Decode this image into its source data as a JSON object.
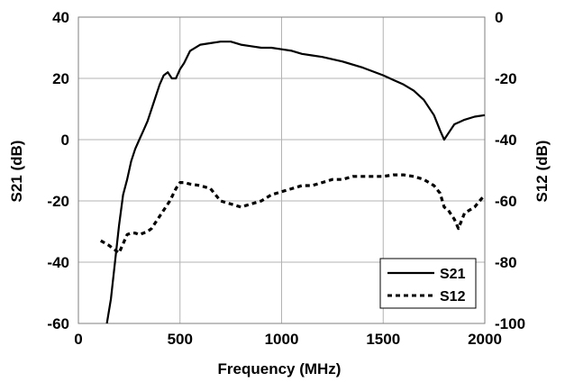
{
  "chart_data": {
    "type": "line",
    "xlabel": "Frequency (MHz)",
    "ylabel": "S21 (dB)",
    "y2label": "S12 (dB)",
    "xlim": [
      0,
      2000
    ],
    "ylim": [
      -60,
      40
    ],
    "y2lim": [
      -100,
      0
    ],
    "xticks": [
      0,
      500,
      1000,
      1500,
      2000
    ],
    "yticks": [
      -60,
      -40,
      -20,
      0,
      20,
      40
    ],
    "y2ticks": [
      -100,
      -80,
      -60,
      -40,
      -20,
      0
    ],
    "grid": true,
    "legend_position": "bottom-right",
    "series": [
      {
        "name": "S21",
        "axis": "left",
        "style": "solid",
        "x": [
          140,
          160,
          180,
          200,
          220,
          240,
          260,
          280,
          300,
          320,
          340,
          360,
          380,
          400,
          420,
          440,
          460,
          480,
          500,
          520,
          550,
          600,
          650,
          700,
          750,
          800,
          850,
          900,
          950,
          1000,
          1050,
          1100,
          1150,
          1200,
          1300,
          1400,
          1500,
          1550,
          1600,
          1650,
          1700,
          1750,
          1780,
          1800,
          1820,
          1850,
          1900,
          1950,
          2000
        ],
        "y": [
          -60,
          -52,
          -40,
          -28,
          -18,
          -13,
          -7,
          -3,
          0,
          3,
          6,
          10,
          14,
          18,
          21,
          22,
          20,
          20,
          23,
          25,
          29,
          31,
          31.5,
          32,
          32,
          31,
          30.5,
          30,
          30,
          29.5,
          29,
          28,
          27.5,
          27,
          25.5,
          23.5,
          21,
          19.5,
          18,
          16,
          13,
          8,
          3,
          0,
          2,
          5,
          6.5,
          7.5,
          8
        ]
      },
      {
        "name": "S12",
        "axis": "right",
        "style": "dashed",
        "x": [
          110,
          150,
          180,
          200,
          220,
          240,
          260,
          280,
          300,
          320,
          340,
          360,
          380,
          400,
          420,
          450,
          480,
          500,
          520,
          550,
          600,
          650,
          700,
          750,
          800,
          850,
          900,
          950,
          1000,
          1050,
          1100,
          1150,
          1200,
          1250,
          1300,
          1350,
          1400,
          1450,
          1500,
          1550,
          1600,
          1650,
          1700,
          1750,
          1780,
          1800,
          1820,
          1850,
          1870,
          1900,
          1950,
          2000
        ],
        "y": [
          -73,
          -74.5,
          -76,
          -77,
          -74,
          -71,
          -70.5,
          -70.5,
          -71,
          -70.5,
          -70,
          -69,
          -67,
          -65,
          -63,
          -60,
          -56,
          -54,
          -54,
          -54.5,
          -55,
          -56,
          -60,
          -61,
          -62,
          -61,
          -60,
          -58,
          -57,
          -56,
          -55,
          -55,
          -54,
          -53,
          -53,
          -52,
          -52,
          -52,
          -52,
          -51.5,
          -51.5,
          -52,
          -53,
          -55,
          -57.5,
          -62,
          -63,
          -66,
          -69,
          -64,
          -62,
          -58
        ]
      }
    ]
  }
}
